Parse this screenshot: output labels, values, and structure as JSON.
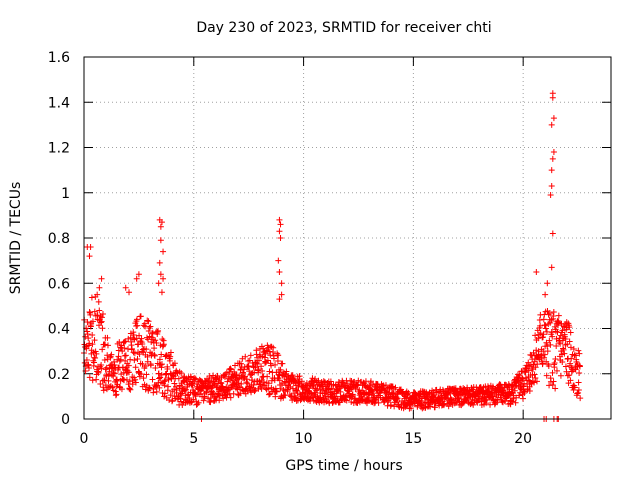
{
  "chart_data": {
    "type": "scatter",
    "title": "Day 230 of 2023, SRMTID for receiver chti",
    "xlabel": "GPS time / hours",
    "ylabel": "SRMTID / TECUs",
    "xlim": [
      0,
      24
    ],
    "ylim": [
      0,
      1.6
    ],
    "x_ticks": [
      0,
      5,
      10,
      15,
      20
    ],
    "x_tick_labels": [
      "0",
      "5",
      "10",
      "15",
      "20"
    ],
    "y_ticks": [
      0,
      0.2,
      0.4,
      0.6,
      0.8,
      1,
      1.2,
      1.4,
      1.6
    ],
    "y_tick_labels": [
      "0",
      "0.2",
      "0.4",
      "0.6",
      "0.8",
      "1",
      "1.2",
      "1.4",
      "1.6"
    ],
    "grid": true,
    "marker": "+",
    "series_color": "#ff0000",
    "series": [
      {
        "name": "SRMTID",
        "envelope": [
          {
            "x": 0.0,
            "base": 0.32,
            "spread": 0.12
          },
          {
            "x": 0.3,
            "base": 0.38,
            "spread": 0.2
          },
          {
            "x": 0.8,
            "base": 0.33,
            "spread": 0.2
          },
          {
            "x": 1.2,
            "base": 0.2,
            "spread": 0.1
          },
          {
            "x": 2.0,
            "base": 0.24,
            "spread": 0.14
          },
          {
            "x": 2.5,
            "base": 0.3,
            "spread": 0.16
          },
          {
            "x": 3.5,
            "base": 0.25,
            "spread": 0.15
          },
          {
            "x": 4.3,
            "base": 0.14,
            "spread": 0.08
          },
          {
            "x": 5.2,
            "base": 0.12,
            "spread": 0.06
          },
          {
            "x": 6.5,
            "base": 0.15,
            "spread": 0.06
          },
          {
            "x": 7.8,
            "base": 0.22,
            "spread": 0.1
          },
          {
            "x": 8.6,
            "base": 0.22,
            "spread": 0.12
          },
          {
            "x": 9.3,
            "base": 0.14,
            "spread": 0.06
          },
          {
            "x": 11.0,
            "base": 0.12,
            "spread": 0.05
          },
          {
            "x": 13.0,
            "base": 0.12,
            "spread": 0.05
          },
          {
            "x": 15.0,
            "base": 0.08,
            "spread": 0.04
          },
          {
            "x": 17.0,
            "base": 0.1,
            "spread": 0.04
          },
          {
            "x": 19.5,
            "base": 0.11,
            "spread": 0.05
          },
          {
            "x": 20.2,
            "base": 0.18,
            "spread": 0.08
          },
          {
            "x": 20.8,
            "base": 0.33,
            "spread": 0.15
          },
          {
            "x": 21.5,
            "base": 0.3,
            "spread": 0.18
          },
          {
            "x": 22.0,
            "base": 0.3,
            "spread": 0.14
          },
          {
            "x": 22.6,
            "base": 0.18,
            "spread": 0.1
          }
        ],
        "peaks": [
          {
            "x": 0.15,
            "y": 0.76
          },
          {
            "x": 0.3,
            "y": 0.76
          },
          {
            "x": 0.25,
            "y": 0.72
          },
          {
            "x": 0.8,
            "y": 0.62
          },
          {
            "x": 0.7,
            "y": 0.58
          },
          {
            "x": 0.6,
            "y": 0.55
          },
          {
            "x": 1.9,
            "y": 0.58
          },
          {
            "x": 2.05,
            "y": 0.56
          },
          {
            "x": 2.4,
            "y": 0.62
          },
          {
            "x": 2.5,
            "y": 0.64
          },
          {
            "x": 3.45,
            "y": 0.88
          },
          {
            "x": 3.55,
            "y": 0.87
          },
          {
            "x": 3.5,
            "y": 0.85
          },
          {
            "x": 3.5,
            "y": 0.79
          },
          {
            "x": 3.6,
            "y": 0.74
          },
          {
            "x": 3.45,
            "y": 0.69
          },
          {
            "x": 3.5,
            "y": 0.64
          },
          {
            "x": 3.6,
            "y": 0.62
          },
          {
            "x": 3.4,
            "y": 0.6
          },
          {
            "x": 3.55,
            "y": 0.56
          },
          {
            "x": 8.9,
            "y": 0.88
          },
          {
            "x": 8.95,
            "y": 0.86
          },
          {
            "x": 8.9,
            "y": 0.83
          },
          {
            "x": 8.95,
            "y": 0.8
          },
          {
            "x": 8.85,
            "y": 0.7
          },
          {
            "x": 8.9,
            "y": 0.65
          },
          {
            "x": 9.0,
            "y": 0.6
          },
          {
            "x": 9.0,
            "y": 0.55
          },
          {
            "x": 8.9,
            "y": 0.53
          },
          {
            "x": 21.35,
            "y": 1.44
          },
          {
            "x": 21.35,
            "y": 1.42
          },
          {
            "x": 21.4,
            "y": 1.33
          },
          {
            "x": 21.3,
            "y": 1.3
          },
          {
            "x": 21.4,
            "y": 1.18
          },
          {
            "x": 21.35,
            "y": 1.15
          },
          {
            "x": 21.3,
            "y": 1.1
          },
          {
            "x": 21.3,
            "y": 1.03
          },
          {
            "x": 21.25,
            "y": 0.99
          },
          {
            "x": 21.35,
            "y": 0.82
          },
          {
            "x": 21.3,
            "y": 0.67
          },
          {
            "x": 20.6,
            "y": 0.65
          },
          {
            "x": 21.1,
            "y": 0.6
          },
          {
            "x": 21.0,
            "y": 0.55
          },
          {
            "x": 20.95,
            "y": 0.0
          },
          {
            "x": 21.05,
            "y": 0.0
          },
          {
            "x": 21.4,
            "y": 0.0
          },
          {
            "x": 21.55,
            "y": 0.0
          },
          {
            "x": 21.6,
            "y": 0.0
          },
          {
            "x": 5.35,
            "y": 0.0
          }
        ]
      }
    ]
  }
}
